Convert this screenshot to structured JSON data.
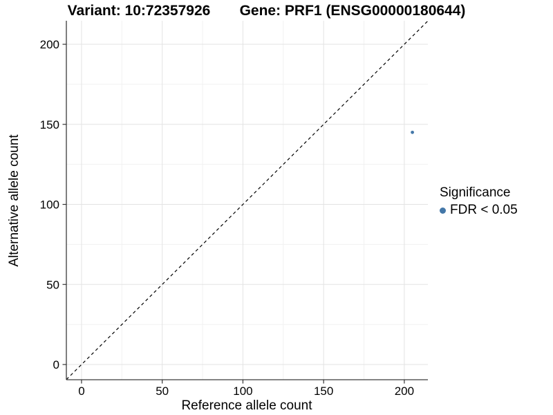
{
  "chart_data": {
    "type": "scatter",
    "title_variant": "Variant: 10:72357926",
    "title_gene": "Gene: PRF1 (ENSG00000180644)",
    "xlabel": "Reference allele count",
    "ylabel": "Alternative allele count",
    "xlim": [
      -9.4,
      214.6
    ],
    "ylim": [
      -9.5,
      214.7
    ],
    "x_major_ticks": [
      0,
      50,
      100,
      150,
      200
    ],
    "y_major_ticks": [
      0,
      50,
      100,
      150,
      200
    ],
    "x_minor_ticks": [
      25,
      75,
      125,
      175
    ],
    "y_minor_ticks": [
      25,
      75,
      125,
      175
    ],
    "grid": "on",
    "reference_line": {
      "slope": 1,
      "intercept": 0,
      "style": "dashed"
    },
    "series": [
      {
        "name": "FDR < 0.05",
        "points": [
          {
            "x": 205,
            "y": 145
          }
        ],
        "color": "#4377A8",
        "marker": "circle",
        "marker_radius": 2.4
      }
    ],
    "legend": {
      "title": "Significance",
      "position": "right",
      "items": [
        {
          "label": "FDR < 0.05",
          "color": "#4377A8"
        }
      ]
    },
    "colors": {
      "point": "#4377A8",
      "grid_major": "#E3E3E3",
      "grid_minor": "#F1F1F1",
      "axis_line": "#3A3A3A",
      "tick_mark": "#333333",
      "reference_line": "#000000",
      "text": "#000000",
      "background": "#FFFFFF"
    }
  }
}
